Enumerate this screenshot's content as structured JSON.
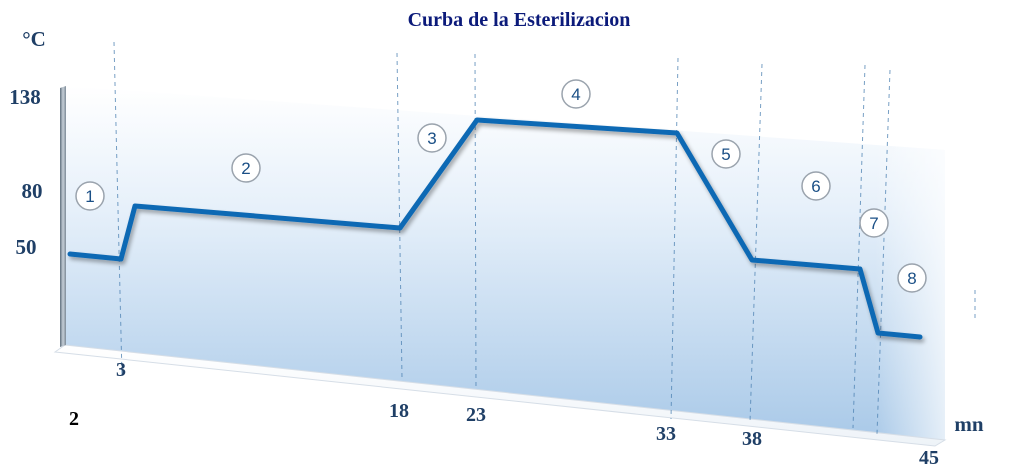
{
  "chart_data": {
    "type": "line",
    "title": "Curba de la Esterilizacion",
    "ylabel": "°C",
    "xlabel": "mn",
    "x_tick_labels": [
      "2",
      "3",
      "18",
      "23",
      "33",
      "38",
      "45"
    ],
    "y_tick_labels": [
      "138",
      "80",
      "50"
    ],
    "phase_labels": [
      "1",
      "2",
      "3",
      "4",
      "5",
      "6",
      "7",
      "8"
    ],
    "colors": {
      "line": "#0f69b4",
      "title": "#0b1a7a",
      "labels": "#1f3f66",
      "guides": "#4a7fb0"
    }
  }
}
